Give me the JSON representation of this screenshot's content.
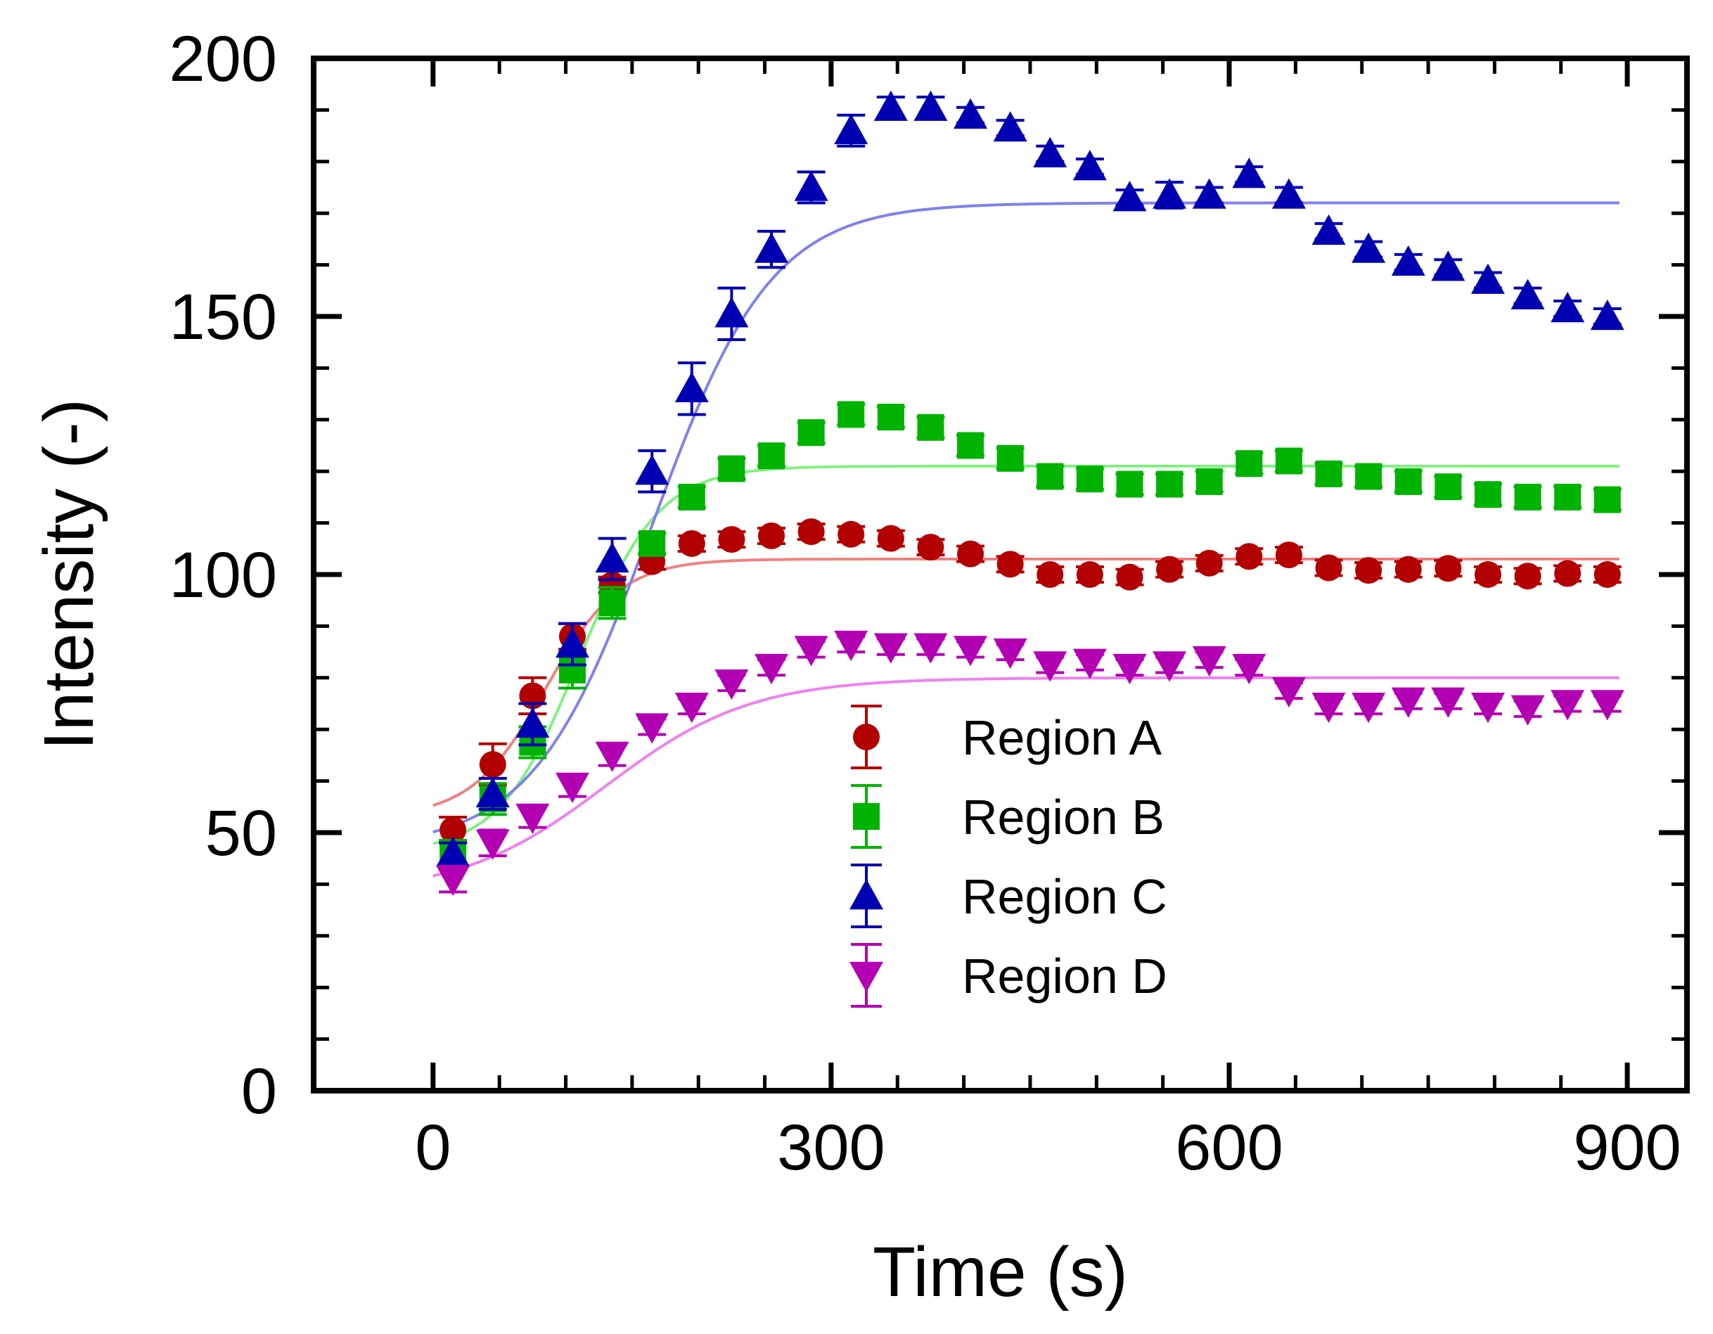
{
  "chart_data": {
    "type": "scatter",
    "title": "",
    "xlabel": "Time (s)",
    "ylabel": "Intensity (-)",
    "xlim": [
      -90,
      945
    ],
    "ylim": [
      0,
      200
    ],
    "xticks": [
      0,
      300,
      600,
      900
    ],
    "yticks": [
      0,
      50,
      100,
      150,
      200
    ],
    "x_minor_step": 50,
    "y_minor_step": 10,
    "grid": false,
    "legend_position": "lower-center",
    "x": [
      15,
      45,
      75,
      105,
      135,
      165,
      195,
      225,
      255,
      285,
      315,
      345,
      375,
      405,
      435,
      465,
      495,
      525,
      555,
      585,
      615,
      645,
      675,
      705,
      735,
      765,
      795,
      825,
      855,
      885
    ],
    "series": [
      {
        "name": "Region A",
        "color": "#b30000",
        "fit_color": "#f08080",
        "marker": "circle",
        "values": [
          50.5,
          63.2,
          76.5,
          88,
          98,
          102.5,
          106,
          106.8,
          107.5,
          108.3,
          107.8,
          107,
          105.3,
          104,
          102,
          100,
          100,
          99.5,
          101,
          102.2,
          103.5,
          103.8,
          101.3,
          100.8,
          101,
          101.2,
          100,
          99.7,
          100.2,
          100
        ],
        "errors": [
          2.5,
          4,
          3.5,
          2.5,
          1.5,
          1.5,
          1.5,
          1.5,
          1.5,
          1.5,
          1.5,
          1.5,
          1.5,
          1.5,
          1.5,
          1.5,
          1.5,
          1.5,
          1.5,
          1.5,
          1.5,
          1.5,
          1.5,
          1.5,
          1.5,
          1.5,
          1.5,
          1.5,
          1.5,
          1.5
        ],
        "fit": {
          "plateau": 103,
          "amplitude": 50,
          "midpoint": 85,
          "width": 28
        }
      },
      {
        "name": "Region B",
        "color": "#00b300",
        "fit_color": "#80f080",
        "marker": "square",
        "values": [
          46,
          56.5,
          67.5,
          81.5,
          94.5,
          106,
          115,
          120.5,
          123,
          127.5,
          131,
          130.5,
          128.5,
          125,
          122.5,
          119,
          118.5,
          117.5,
          117.5,
          118,
          121.5,
          122,
          119.5,
          119,
          118,
          117,
          115.5,
          115,
          115,
          114.5
        ],
        "errors": [
          2.5,
          3,
          3,
          3.5,
          3,
          2,
          2,
          2,
          2,
          2,
          2,
          2,
          2,
          2,
          2,
          2,
          2,
          2,
          2,
          2,
          2,
          2,
          2,
          2,
          2,
          2,
          2,
          2,
          2,
          2
        ],
        "fit": {
          "plateau": 121,
          "amplitude": 75,
          "midpoint": 110,
          "width": 30
        }
      },
      {
        "name": "Region C",
        "color": "#0000b3",
        "fit_color": "#8080f0",
        "marker": "triangle-up",
        "values": [
          46,
          57.5,
          71,
          86.5,
          103,
          120,
          136,
          150.5,
          163,
          175,
          186,
          190.5,
          190.5,
          189,
          186.5,
          181.5,
          179,
          173,
          173.5,
          173.5,
          177.5,
          173.5,
          166.5,
          163,
          160.5,
          159.5,
          157,
          154,
          151.5,
          150
        ],
        "errors": [
          2,
          3,
          4,
          4,
          4,
          4,
          5,
          5,
          3.5,
          3,
          3,
          2,
          2,
          1.5,
          1.5,
          1.5,
          1.5,
          1.5,
          2.5,
          1.5,
          1.5,
          1.5,
          1.5,
          1.5,
          1.5,
          1.5,
          1.5,
          1.5,
          1.5,
          1.5
        ],
        "fit": {
          "plateau": 172,
          "amplitude": 125,
          "midpoint": 165,
          "width": 45
        }
      },
      {
        "name": "Region D",
        "color": "#b300b3",
        "fit_color": "#f080f0",
        "marker": "triangle-down",
        "values": [
          41,
          48,
          53,
          59,
          65,
          70.5,
          74.5,
          79,
          82,
          85.5,
          86.5,
          86,
          86,
          85.5,
          85,
          82.5,
          83,
          82,
          82.5,
          83.5,
          82,
          77.5,
          74.5,
          74.5,
          75.5,
          75.5,
          74.5,
          74,
          75,
          75
        ],
        "errors": [
          2.5,
          2.5,
          2,
          2,
          2,
          1.5,
          1.5,
          1.5,
          1.5,
          1.5,
          1.5,
          1.5,
          1.5,
          1.5,
          1.5,
          1.5,
          1.5,
          1.5,
          1.5,
          1.5,
          1.5,
          1.5,
          1.5,
          1.5,
          1.5,
          1.5,
          1.5,
          1.5,
          1.5,
          1.5
        ],
        "fit": {
          "plateau": 80,
          "amplitude": 42,
          "midpoint": 130,
          "width": 55
        }
      }
    ]
  }
}
